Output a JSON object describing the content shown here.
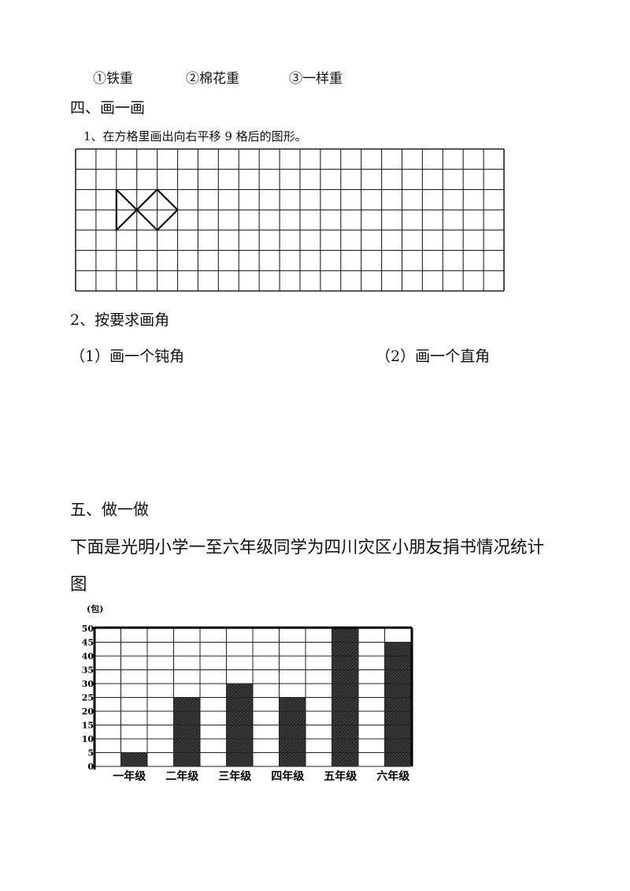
{
  "choices": [
    "①铁重",
    "②棉花重",
    "③一样重"
  ],
  "section4": {
    "title": "四、画一画",
    "q1": "1、在方格里画出向右平移 9 格后的图形。",
    "grid": {
      "columns": 21,
      "rows": 7,
      "shape_vertices": [
        [
          2,
          2
        ],
        [
          4,
          4
        ],
        [
          5,
          3
        ],
        [
          4,
          2
        ],
        [
          2,
          4
        ],
        [
          2,
          2
        ]
      ]
    },
    "q2": "2、按要求画角",
    "q2a": "（1）画一个钝角",
    "q2b": "（2）画一个直角"
  },
  "section5": {
    "title": "五、做一做",
    "desc_line1": "下面是光明小学一至六年级同学为四川灾区小朋友捐书情况统计",
    "desc_line2": "图"
  },
  "chart_data": {
    "type": "bar",
    "ylabel": "(包)",
    "categories": [
      "一年级",
      "二年级",
      "三年级",
      "四年级",
      "五年级",
      "六年级"
    ],
    "values": [
      5,
      25,
      30,
      25,
      50,
      45
    ],
    "ylim": [
      0,
      50
    ],
    "yticks": [
      "0",
      "5",
      "10",
      "15",
      "20",
      "25",
      "30",
      "35",
      "40",
      "45",
      "50"
    ],
    "grid": true,
    "bar_color": "#2a2a2a"
  }
}
